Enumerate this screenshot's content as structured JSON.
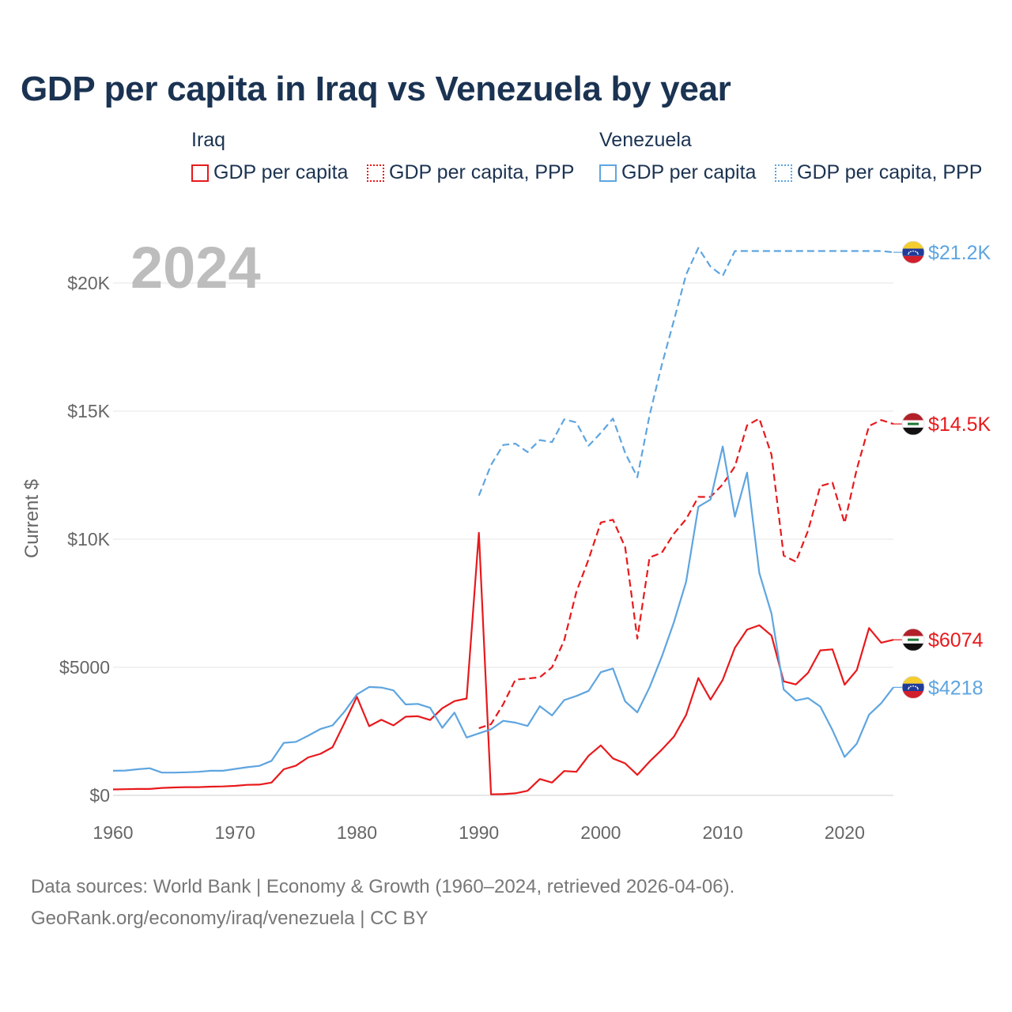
{
  "title": "GDP per capita in Iraq vs Venezuela by year",
  "watermark_year": "2024",
  "legend": {
    "groups": [
      {
        "label": "Iraq",
        "items": [
          {
            "label": "GDP per capita",
            "color": "#e8191c",
            "style": "solid"
          },
          {
            "label": "GDP per capita, PPP",
            "color": "#e8191c",
            "style": "dotted"
          }
        ]
      },
      {
        "label": "Venezuela",
        "items": [
          {
            "label": "GDP per capita",
            "color": "#5ea5e0",
            "style": "solid"
          },
          {
            "label": "GDP per capita, PPP",
            "color": "#5ea5e0",
            "style": "dotted"
          }
        ]
      }
    ]
  },
  "chart_data": {
    "type": "line",
    "title": "GDP per capita in Iraq vs Venezuela by year",
    "xlabel": "",
    "ylabel": "Current $",
    "xlim": [
      1960,
      2024
    ],
    "ylim": [
      0,
      22000
    ],
    "x_ticks": [
      1960,
      1970,
      1980,
      1990,
      2000,
      2010,
      2020
    ],
    "y_ticks": [
      0,
      5000,
      10000,
      15000,
      20000
    ],
    "y_tick_labels": [
      "$0",
      "$5000",
      "$10K",
      "$15K",
      "$20K"
    ],
    "series": [
      {
        "name": "Iraq GDP per capita",
        "color": "#e8191c",
        "dash": "solid",
        "end_label": "$6074",
        "flag": "iraq",
        "x": [
          1960,
          1961,
          1962,
          1963,
          1964,
          1965,
          1966,
          1967,
          1968,
          1969,
          1970,
          1971,
          1972,
          1973,
          1974,
          1975,
          1976,
          1977,
          1978,
          1979,
          1980,
          1981,
          1982,
          1983,
          1984,
          1985,
          1986,
          1987,
          1988,
          1989,
          1990,
          1991,
          1992,
          1993,
          1994,
          1995,
          1996,
          1997,
          1998,
          1999,
          2000,
          2001,
          2002,
          2003,
          2004,
          2005,
          2006,
          2007,
          2008,
          2009,
          2010,
          2011,
          2012,
          2013,
          2014,
          2015,
          2016,
          2017,
          2018,
          2019,
          2020,
          2021,
          2022,
          2023,
          2024
        ],
        "values": [
          230,
          240,
          250,
          250,
          290,
          310,
          320,
          320,
          340,
          350,
          370,
          410,
          420,
          500,
          1020,
          1160,
          1480,
          1620,
          1880,
          2850,
          3850,
          2700,
          2950,
          2730,
          3070,
          3090,
          2940,
          3400,
          3680,
          3780,
          10250,
          40,
          50,
          80,
          180,
          640,
          500,
          950,
          920,
          1550,
          1950,
          1440,
          1250,
          800,
          1320,
          1780,
          2290,
          3140,
          4580,
          3740,
          4510,
          5760,
          6470,
          6640,
          6240,
          4450,
          4330,
          4780,
          5660,
          5700,
          4320,
          4890,
          6530,
          5960,
          6074
        ]
      },
      {
        "name": "Iraq GDP per capita, PPP",
        "color": "#e8191c",
        "dash": "dashed",
        "end_label": "$14.5K",
        "flag": "iraq",
        "x": [
          1990,
          1991,
          1992,
          1993,
          1994,
          1995,
          1996,
          1997,
          1998,
          1999,
          2000,
          2001,
          2002,
          2003,
          2004,
          2005,
          2006,
          2007,
          2008,
          2009,
          2010,
          2011,
          2012,
          2013,
          2014,
          2015,
          2016,
          2017,
          2018,
          2019,
          2020,
          2021,
          2022,
          2023,
          2024
        ],
        "values": [
          2620,
          2780,
          3560,
          4520,
          4560,
          4610,
          5000,
          6050,
          7940,
          9220,
          10650,
          10760,
          9690,
          6120,
          9290,
          9470,
          10220,
          10780,
          11650,
          11650,
          12140,
          12840,
          14440,
          14710,
          13300,
          9360,
          9120,
          10330,
          12070,
          12210,
          10630,
          12740,
          14420,
          14650,
          14500
        ]
      },
      {
        "name": "Venezuela GDP per capita",
        "color": "#5ea5e0",
        "dash": "solid",
        "end_label": "$4218",
        "flag": "venezuela",
        "x": [
          1960,
          1961,
          1962,
          1963,
          1964,
          1965,
          1966,
          1967,
          1968,
          1969,
          1970,
          1971,
          1972,
          1973,
          1974,
          1975,
          1976,
          1977,
          1978,
          1979,
          1980,
          1981,
          1982,
          1983,
          1984,
          1985,
          1986,
          1987,
          1988,
          1989,
          1990,
          1991,
          1992,
          1993,
          1994,
          1995,
          1996,
          1997,
          1998,
          1999,
          2000,
          2001,
          2002,
          2003,
          2004,
          2005,
          2006,
          2007,
          2008,
          2009,
          2010,
          2011,
          2012,
          2013,
          2014,
          2015,
          2016,
          2017,
          2018,
          2019,
          2020,
          2021,
          2022,
          2023,
          2024
        ],
        "values": [
          960,
          970,
          1020,
          1060,
          890,
          890,
          900,
          920,
          960,
          960,
          1030,
          1100,
          1150,
          1350,
          2050,
          2090,
          2330,
          2590,
          2730,
          3280,
          3940,
          4230,
          4210,
          4100,
          3550,
          3570,
          3420,
          2640,
          3230,
          2260,
          2420,
          2580,
          2910,
          2840,
          2710,
          3480,
          3120,
          3720,
          3880,
          4080,
          4810,
          4950,
          3670,
          3240,
          4220,
          5410,
          6760,
          8340,
          11270,
          11550,
          13620,
          10880,
          12600,
          8680,
          7100,
          4140,
          3700,
          3800,
          3470,
          2550,
          1500,
          2020,
          3150,
          3600,
          4218
        ]
      },
      {
        "name": "Venezuela GDP per capita, PPP",
        "color": "#5ea5e0",
        "dash": "dashed",
        "end_label": "$21.2K",
        "flag": "venezuela",
        "x": [
          1990,
          1991,
          1992,
          1993,
          1994,
          1995,
          1996,
          1997,
          1998,
          1999,
          2000,
          2001,
          2002,
          2003,
          2004,
          2005,
          2006,
          2007,
          2008,
          2009,
          2010,
          2011,
          2012,
          2013,
          2014,
          2015,
          2016,
          2017,
          2018,
          2019,
          2020,
          2021,
          2022,
          2023,
          2024
        ],
        "values": [
          11700,
          12900,
          13680,
          13730,
          13400,
          13870,
          13790,
          14680,
          14560,
          13650,
          14150,
          14710,
          13370,
          12420,
          14840,
          16800,
          18540,
          20330,
          21370,
          20640,
          20280,
          21250,
          21250,
          21250,
          21250,
          21250,
          21250,
          21250,
          21250,
          21250,
          21250,
          21250,
          21250,
          21250,
          21200
        ]
      }
    ]
  },
  "source": {
    "line1": "Data sources: World Bank | Economy & Growth (1960–2024, retrieved 2026-04-06).",
    "line2": "GeoRank.org/economy/iraq/venezuela | CC BY"
  }
}
